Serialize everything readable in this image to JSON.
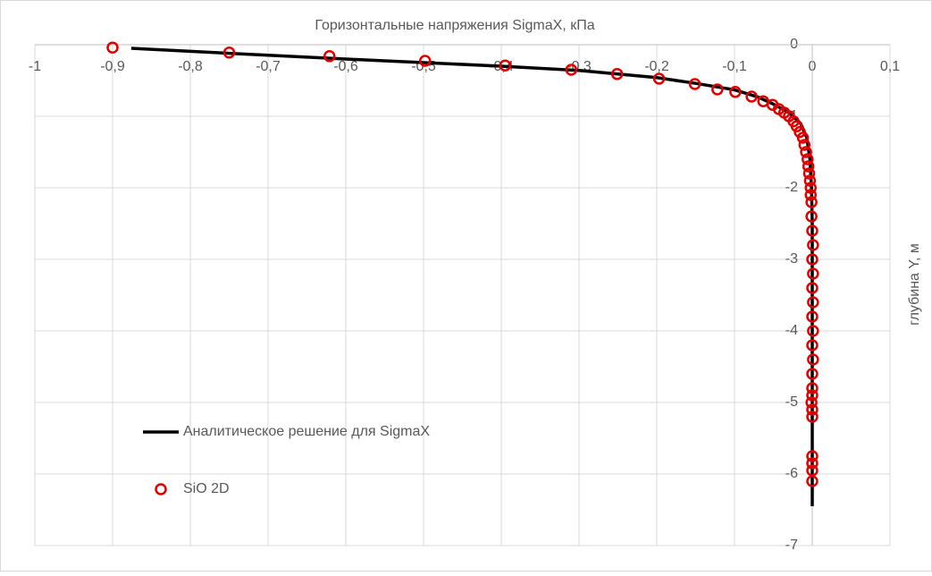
{
  "chart_data": {
    "type": "line-scatter",
    "title": "Горизонтальные напряжения SigmaX, кПа",
    "y_label": "глубина Y, м",
    "xlim": [
      -1,
      0.1
    ],
    "ylim": [
      -7,
      0
    ],
    "xticks": [
      -1,
      {
        "value": -0.9,
        "label": "-0,9"
      },
      {
        "value": -0.8,
        "label": "-0,8"
      },
      {
        "value": -0.7,
        "label": "-0,7"
      },
      {
        "value": -0.6,
        "label": "-0,6"
      },
      {
        "value": -0.5,
        "label": "-0,5"
      },
      {
        "value": -0.4,
        "label": "-0,4"
      },
      {
        "value": -0.3,
        "label": "-0,3"
      },
      {
        "value": -0.2,
        "label": "-0,2"
      },
      {
        "value": -0.1,
        "label": "-0,1"
      },
      0,
      {
        "value": 0.1,
        "label": "0,1"
      }
    ],
    "yticks": [
      0,
      -1,
      -2,
      -3,
      -4,
      -5,
      -6,
      -7
    ],
    "grid": true,
    "series": [
      {
        "name": "Аналитическое решение для SigmaX",
        "color": "#000000",
        "type": "line",
        "x": [
          -0.876,
          -0.75,
          -0.6,
          -0.5,
          -0.4,
          -0.3,
          -0.2,
          -0.15,
          -0.1,
          -0.07,
          -0.05,
          -0.03,
          -0.015,
          -0.007,
          -0.003,
          -0.001,
          0,
          0
        ],
        "y": [
          -0.05,
          -0.12,
          -0.2,
          -0.25,
          -0.3,
          -0.36,
          -0.46,
          -0.54,
          -0.63,
          -0.73,
          -0.83,
          -0.95,
          -1.1,
          -1.3,
          -1.6,
          -2.0,
          -2.5,
          -6.45
        ]
      },
      {
        "name": "SiO 2D",
        "color": "#e00000",
        "type": "scatter",
        "x": [
          -0.9,
          -0.75,
          -0.621,
          -0.498,
          -0.395,
          -0.31,
          -0.251,
          -0.197,
          -0.151,
          -0.122,
          -0.099,
          -0.078,
          -0.063,
          -0.051,
          -0.043,
          -0.036,
          -0.03,
          -0.024,
          -0.02,
          -0.016,
          -0.012,
          -0.01,
          -0.008,
          -0.006,
          -0.005,
          -0.004,
          -0.003,
          -0.002,
          -0.002,
          -0.001,
          -0.001,
          0,
          0.001,
          0,
          0.001,
          0,
          0.001,
          0,
          0.001,
          0,
          0.001,
          0,
          0,
          0,
          -0.001,
          0,
          0,
          0,
          0,
          0,
          0
        ],
        "y": [
          -0.04,
          -0.11,
          -0.16,
          -0.225,
          -0.29,
          -0.35,
          -0.41,
          -0.475,
          -0.55,
          -0.625,
          -0.66,
          -0.725,
          -0.79,
          -0.84,
          -0.9,
          -0.95,
          -1.0,
          -1.07,
          -1.14,
          -1.22,
          -1.3,
          -1.4,
          -1.5,
          -1.6,
          -1.7,
          -1.8,
          -1.9,
          -2.0,
          -2.1,
          -2.2,
          -2.4,
          -2.6,
          -2.8,
          -3.0,
          -3.2,
          -3.4,
          -3.6,
          -3.8,
          -4.0,
          -4.2,
          -4.4,
          -4.6,
          -4.8,
          -4.9,
          -5.0,
          -5.1,
          -5.2,
          -5.75,
          -5.85,
          -5.95,
          -6.1
        ]
      }
    ]
  }
}
